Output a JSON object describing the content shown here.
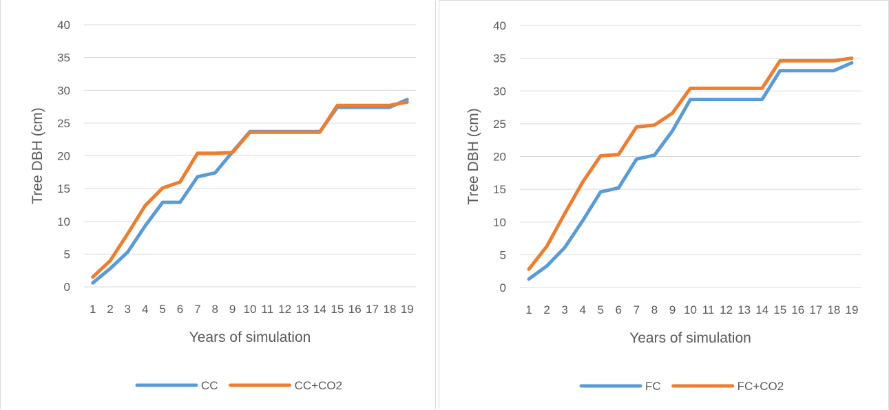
{
  "chart_data": [
    {
      "type": "line",
      "title": "",
      "xlabel": "Years of simulation",
      "ylabel": "Tree DBH (cm)",
      "ylim": [
        0,
        40
      ],
      "yticks": [
        0,
        5,
        10,
        15,
        20,
        25,
        30,
        35,
        40
      ],
      "grid": true,
      "legend": "bottom",
      "x": [
        1,
        2,
        3,
        4,
        5,
        6,
        7,
        8,
        9,
        10,
        11,
        12,
        13,
        14,
        15,
        16,
        17,
        18,
        19
      ],
      "series": [
        {
          "name": "CC",
          "color": "#5B9BD5",
          "values": [
            0.6,
            2.8,
            5.3,
            9.3,
            12.9,
            12.9,
            16.8,
            17.4,
            20.6,
            23.7,
            23.7,
            23.7,
            23.7,
            23.7,
            27.4,
            27.4,
            27.4,
            27.4,
            28.6
          ]
        },
        {
          "name": "CC+CO2",
          "color": "#ED7D31",
          "values": [
            1.5,
            4.0,
            8.1,
            12.4,
            15.1,
            16.0,
            20.4,
            20.4,
            20.5,
            23.6,
            23.6,
            23.6,
            23.6,
            23.6,
            27.7,
            27.7,
            27.7,
            27.7,
            28.2
          ]
        }
      ]
    },
    {
      "type": "line",
      "title": "",
      "xlabel": "Years of simulation",
      "ylabel": "Tree DBH (cm)",
      "ylim": [
        0,
        40
      ],
      "yticks": [
        0,
        5,
        10,
        15,
        20,
        25,
        30,
        35,
        40
      ],
      "grid": true,
      "legend": "bottom",
      "x": [
        1,
        2,
        3,
        4,
        5,
        6,
        7,
        8,
        9,
        10,
        11,
        12,
        13,
        14,
        15,
        16,
        17,
        18,
        19
      ],
      "series": [
        {
          "name": "FC",
          "color": "#5B9BD5",
          "values": [
            1.3,
            3.3,
            6.1,
            10.2,
            14.6,
            15.2,
            19.6,
            20.2,
            23.9,
            28.7,
            28.7,
            28.7,
            28.7,
            28.7,
            33.1,
            33.1,
            33.1,
            33.1,
            34.3
          ]
        },
        {
          "name": "FC+CO2",
          "color": "#ED7D31",
          "values": [
            2.8,
            6.3,
            11.3,
            16.1,
            20.1,
            20.3,
            24.5,
            24.8,
            26.6,
            30.4,
            30.4,
            30.4,
            30.4,
            30.4,
            34.6,
            34.6,
            34.6,
            34.6,
            35.0
          ]
        }
      ]
    }
  ]
}
